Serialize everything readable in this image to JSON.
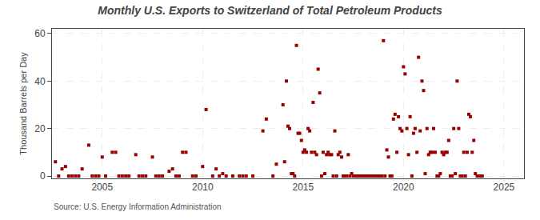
{
  "chart_data": {
    "type": "scatter",
    "title": "Monthly U.S. Exports to Switzerland of Total Petroleum Products",
    "ylabel": "Thousand Barrels per Day",
    "annotations": [
      "Source: U.S. Energy Information Administration"
    ],
    "color": "#990000",
    "marker": "square",
    "grid": true,
    "xlim": [
      2002.5,
      2026.0
    ],
    "ylim": [
      -1,
      62
    ],
    "xticks": [
      2005,
      2010,
      2015,
      2020,
      2025
    ],
    "yticks": [
      0,
      20,
      40,
      60
    ],
    "x": [
      2002.67,
      2002.83,
      2003.0,
      2003.17,
      2003.33,
      2003.5,
      2003.67,
      2003.83,
      2004.0,
      2004.33,
      2004.5,
      2004.67,
      2004.83,
      2005.0,
      2005.17,
      2005.5,
      2005.67,
      2005.83,
      2006.0,
      2006.17,
      2006.33,
      2006.67,
      2006.83,
      2007.0,
      2007.17,
      2007.5,
      2007.67,
      2007.83,
      2008.0,
      2008.33,
      2008.5,
      2008.67,
      2008.83,
      2009.0,
      2009.17,
      2009.5,
      2009.67,
      2010.0,
      2010.17,
      2010.5,
      2010.67,
      2010.83,
      2011.0,
      2011.17,
      2011.5,
      2011.83,
      2012.0,
      2012.17,
      2012.5,
      2013.0,
      2013.17,
      2013.5,
      2013.67,
      2014.0,
      2014.08,
      2014.17,
      2014.25,
      2014.33,
      2014.42,
      2014.5,
      2014.58,
      2014.67,
      2014.75,
      2014.83,
      2014.92,
      2015.0,
      2015.08,
      2015.17,
      2015.25,
      2015.33,
      2015.42,
      2015.5,
      2015.58,
      2015.67,
      2015.75,
      2015.83,
      2015.92,
      2016.0,
      2016.08,
      2016.17,
      2016.25,
      2016.33,
      2016.42,
      2016.5,
      2016.58,
      2016.67,
      2016.75,
      2016.83,
      2016.92,
      2017.0,
      2017.08,
      2017.17,
      2017.25,
      2017.33,
      2017.42,
      2017.5,
      2017.58,
      2017.67,
      2017.75,
      2017.83,
      2017.92,
      2018.0,
      2018.08,
      2018.17,
      2018.25,
      2018.33,
      2018.42,
      2018.5,
      2018.58,
      2018.67,
      2018.75,
      2018.83,
      2018.92,
      2019.0,
      2019.08,
      2019.17,
      2019.25,
      2019.33,
      2019.42,
      2019.5,
      2019.58,
      2019.67,
      2019.75,
      2019.83,
      2019.92,
      2020.0,
      2020.08,
      2020.17,
      2020.25,
      2020.33,
      2020.42,
      2020.5,
      2020.58,
      2020.67,
      2020.75,
      2020.83,
      2020.92,
      2021.0,
      2021.08,
      2021.17,
      2021.25,
      2021.33,
      2021.42,
      2021.5,
      2021.58,
      2021.67,
      2021.75,
      2021.83,
      2021.92,
      2022.0,
      2022.08,
      2022.17,
      2022.25,
      2022.33,
      2022.42,
      2022.5,
      2022.58,
      2022.67,
      2022.75,
      2022.83,
      2022.92,
      2023.0,
      2023.08,
      2023.17,
      2023.25,
      2023.33,
      2023.42,
      2023.5,
      2023.58,
      2023.67,
      2023.75,
      2023.83,
      2023.92
    ],
    "values": [
      6,
      0,
      3,
      4,
      0,
      0,
      0,
      0,
      3,
      13,
      0,
      0,
      0,
      8,
      0,
      10,
      10,
      0,
      0,
      0,
      0,
      9,
      0,
      0,
      0,
      8,
      0,
      0,
      0,
      2,
      3,
      0,
      0,
      10,
      10,
      0,
      0,
      4,
      28,
      0,
      3,
      0,
      1,
      0,
      0,
      0,
      0,
      0,
      0,
      19,
      24,
      0,
      5,
      30,
      6,
      40,
      21,
      20,
      1,
      1,
      0,
      55,
      18,
      18,
      15,
      10,
      11,
      10,
      20,
      19,
      10,
      31,
      10,
      9,
      45,
      35,
      0,
      10,
      1,
      9,
      10,
      9,
      9,
      0,
      19,
      0,
      9,
      10,
      8,
      0,
      0,
      0,
      9,
      0,
      1,
      0,
      0,
      0,
      0,
      0,
      0,
      0,
      0,
      0,
      0,
      0,
      0,
      0,
      0,
      0,
      0,
      0,
      0,
      57,
      0,
      11,
      8,
      0,
      0,
      24,
      26,
      10,
      25,
      20,
      19,
      46,
      43,
      20,
      9,
      25,
      0,
      18,
      20,
      10,
      50,
      19,
      40,
      36,
      1,
      20,
      9,
      10,
      10,
      20,
      10,
      0,
      0,
      1,
      10,
      9,
      10,
      10,
      15,
      0,
      0,
      20,
      1,
      40,
      20,
      0,
      0,
      10,
      0,
      10,
      26,
      25,
      10,
      15,
      1,
      0,
      0,
      0,
      0
    ]
  }
}
